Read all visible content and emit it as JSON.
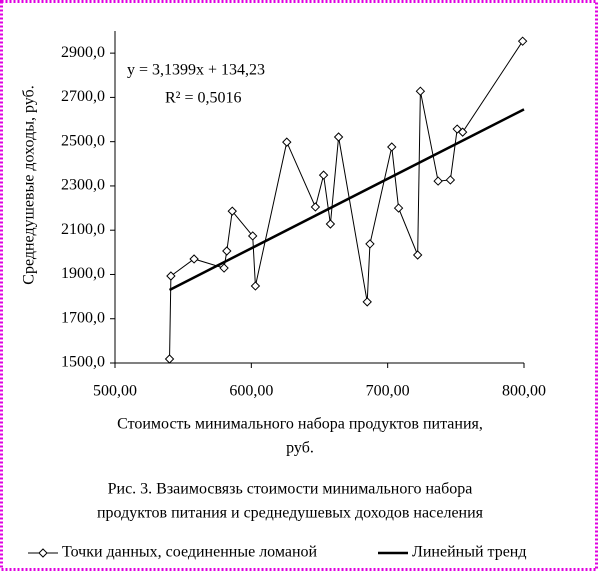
{
  "chart_data": {
    "type": "line",
    "x_label": [
      "Стоимость минимального набора продуктов питания,",
      "руб."
    ],
    "y_label": "Среднедушевые доходы, руб.",
    "caption": [
      "Рис. 3. Взаимосвязь стоимости минимального набора",
      "продуктов питания и среднедушевых доходов населения"
    ],
    "annotations": [
      "y = 3,1399x + 134,23",
      "R² = 0,5016"
    ],
    "xlim": [
      500,
      800
    ],
    "ylim": [
      1500,
      3000
    ],
    "xticks": [
      {
        "value": 500,
        "label": "500,00"
      },
      {
        "value": 600,
        "label": "600,00"
      },
      {
        "value": 700,
        "label": "700,00"
      },
      {
        "value": 800,
        "label": "800,00"
      }
    ],
    "yticks": [
      {
        "value": 1500,
        "label": "1500,0"
      },
      {
        "value": 1700,
        "label": "1700,0"
      },
      {
        "value": 1900,
        "label": "1900,0"
      },
      {
        "value": 2100,
        "label": "2100,0"
      },
      {
        "value": 2300,
        "label": "2300,0"
      },
      {
        "value": 2500,
        "label": "2500,0"
      },
      {
        "value": 2700,
        "label": "2700,0"
      },
      {
        "value": 2900,
        "label": "2900,0"
      }
    ],
    "series": [
      {
        "name": "Точки данных, соединенные ломаной",
        "color": "#000000",
        "marker": "diamond",
        "x": [
          540,
          541,
          558,
          580,
          582,
          586,
          601,
          603,
          626,
          647,
          653,
          658,
          664,
          685,
          687,
          703,
          708,
          722,
          724,
          737,
          746,
          751,
          755,
          799
        ],
        "values": [
          1518,
          1893,
          1970,
          1929,
          2006,
          2186,
          2074,
          1848,
          2498,
          2205,
          2349,
          2128,
          2521,
          1776,
          2038,
          2476,
          2200,
          1988,
          2728,
          2322,
          2327,
          2557,
          2543,
          2954
        ]
      },
      {
        "name": "Линейный тренд",
        "color": "#000000",
        "x": [
          540,
          800
        ],
        "values": [
          1830,
          2646
        ]
      }
    ]
  }
}
